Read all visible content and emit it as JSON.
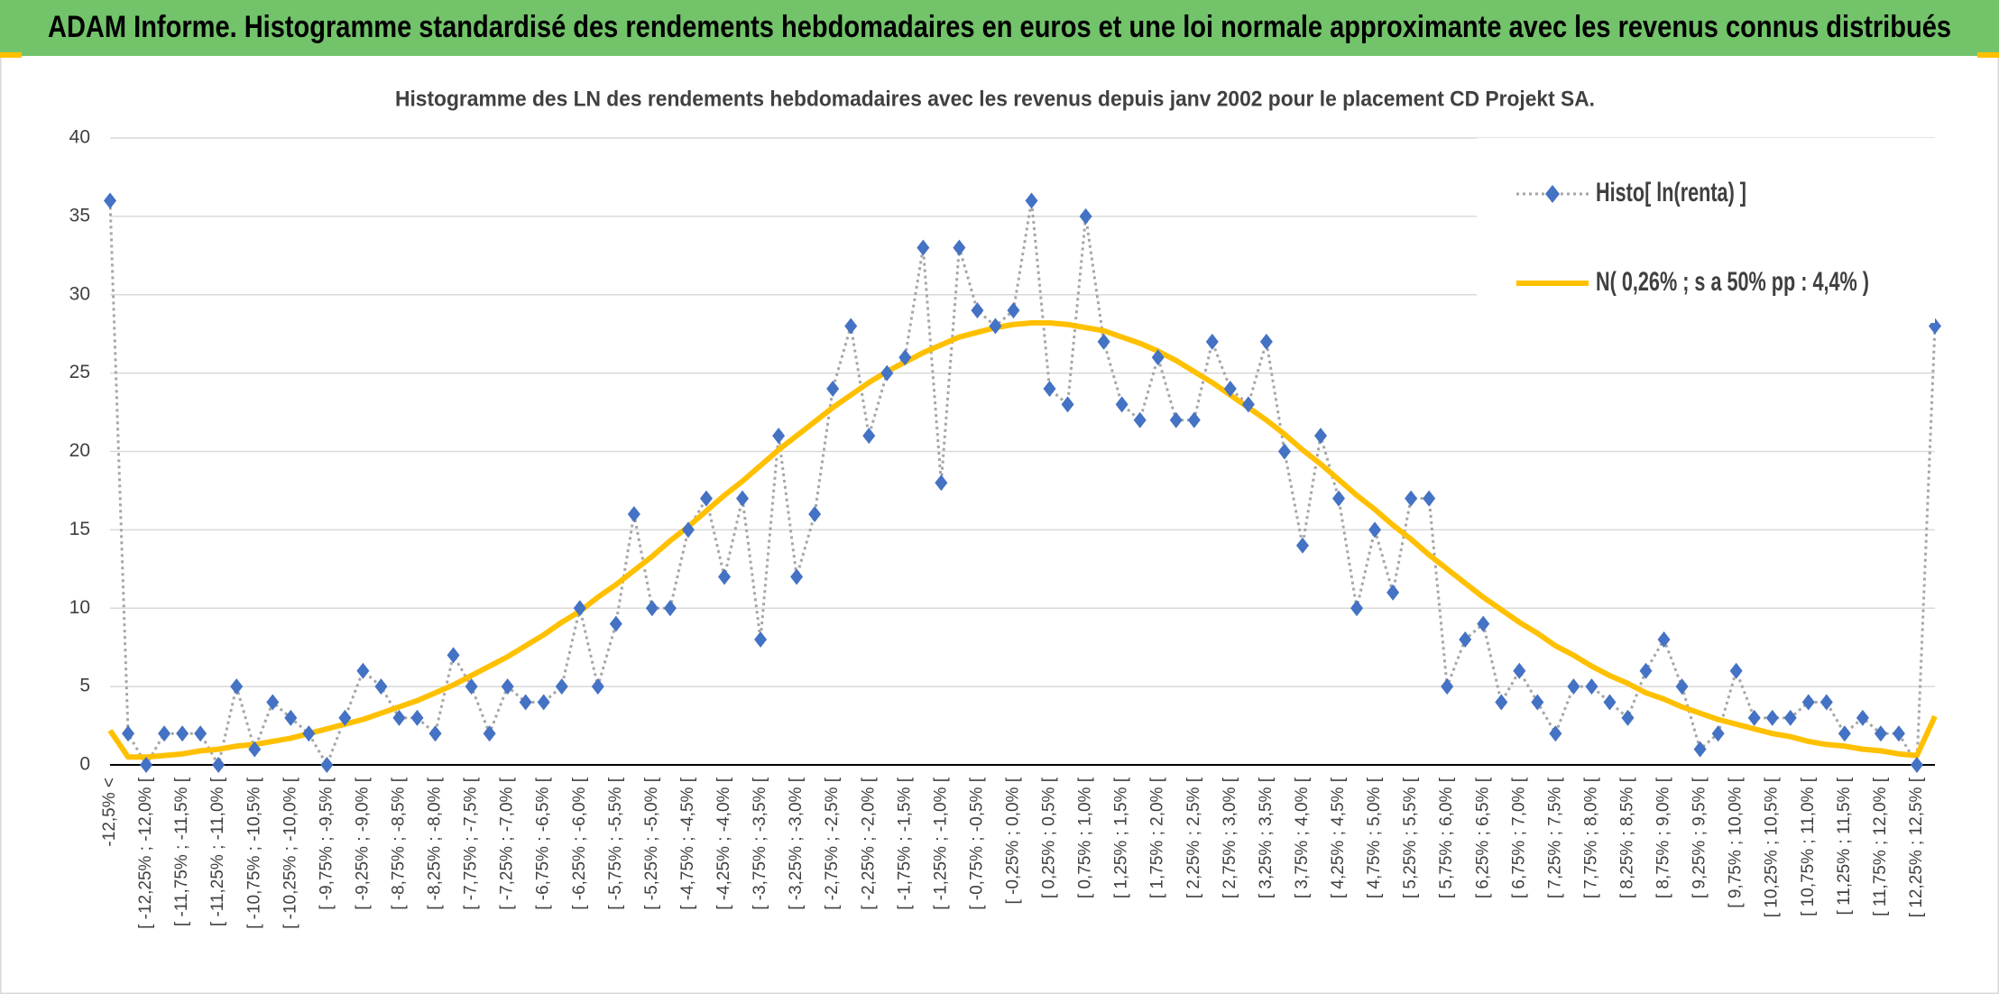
{
  "header": {
    "title": "ADAM Informe. Histogramme standardisé des rendements hebdomadaires en euros et une loi normale approximante avec les revenus connus distribués"
  },
  "chart_data": {
    "type": "line",
    "title": "Histogramme des LN des rendements hebdomadaires avec les revenus depuis janv 2002 pour le placement CD Projekt SA.",
    "categories": [
      "-12,5% <",
      null,
      "[ -12,25% ; -12,0% [",
      null,
      "[ -11,75% ; -11,5% [",
      null,
      "[ -11,25% ; -11,0% [",
      null,
      "[ -10,75% ; -10,5% [",
      null,
      "[ -10,25% ; -10,0% [",
      null,
      "[ -9,75% ; -9,5% [",
      null,
      "[ -9,25% ; -9,0% [",
      null,
      "[ -8,75% ; -8,5% [",
      null,
      "[ -8,25% ; -8,0% [",
      null,
      "[ -7,75% ; -7,5% [",
      null,
      "[ -7,25% ; -7,0% [",
      null,
      "[ -6,75% ; -6,5% [",
      null,
      "[ -6,25% ; -6,0% [",
      null,
      "[ -5,75% ; -5,5% [",
      null,
      "[ -5,25% ; -5,0% [",
      null,
      "[ -4,75% ; -4,5% [",
      null,
      "[ -4,25% ; -4,0% [",
      null,
      "[ -3,75% ; -3,5% [",
      null,
      "[ -3,25% ; -3,0% [",
      null,
      "[ -2,75% ; -2,5% [",
      null,
      "[ -2,25% ; -2,0% [",
      null,
      "[ -1,75% ; -1,5% [",
      null,
      "[ -1,25% ; -1,0% [",
      null,
      "[ -0,75% ; -0,5% [",
      null,
      "[ -0,25% ; 0,0% [",
      null,
      "[ 0,25% ; 0,5% [",
      null,
      "[ 0,75% ; 1,0% [",
      null,
      "[ 1,25% ; 1,5% [",
      null,
      "[ 1,75% ; 2,0% [",
      null,
      "[ 2,25% ; 2,5% [",
      null,
      "[ 2,75% ; 3,0% [",
      null,
      "[ 3,25% ; 3,5% [",
      null,
      "[ 3,75% ; 4,0% [",
      null,
      "[ 4,25% ; 4,5% [",
      null,
      "[ 4,75% ; 5,0% [",
      null,
      "[ 5,25% ; 5,5% [",
      null,
      "[ 5,75% ; 6,0% [",
      null,
      "[ 6,25% ; 6,5% [",
      null,
      "[ 6,75% ; 7,0% [",
      null,
      "[ 7,25% ; 7,5% [",
      null,
      "[ 7,75% ; 8,0% [",
      null,
      "[ 8,25% ; 8,5% [",
      null,
      "[ 8,75% ; 9,0% [",
      null,
      "[ 9,25% ; 9,5% [",
      null,
      "[ 9,75% ; 10,0% [",
      null,
      "[ 10,25% ; 10,5% [",
      null,
      "[ 10,75% ; 11,0% [",
      null,
      "[ 11,25% ; 11,5% [",
      null,
      "[ 11,75% ; 12,0% [",
      null,
      "[ 12,25% ; 12,5% [",
      null
    ],
    "series": [
      {
        "name": "Histo[ ln(renta) ]",
        "color": "#a6a6a6",
        "line_style": "dotted",
        "marker": "diamond",
        "marker_color": "#4472c4",
        "values": [
          36,
          2,
          0,
          2,
          2,
          2,
          0,
          5,
          1,
          4,
          3,
          2,
          0,
          3,
          6,
          5,
          3,
          3,
          2,
          7,
          5,
          2,
          5,
          4,
          4,
          5,
          10,
          5,
          9,
          16,
          10,
          10,
          15,
          17,
          12,
          17,
          8,
          21,
          12,
          16,
          24,
          28,
          21,
          25,
          26,
          33,
          18,
          33,
          29,
          28,
          29,
          36,
          24,
          23,
          35,
          27,
          23,
          22,
          26,
          22,
          22,
          27,
          24,
          23,
          27,
          20,
          14,
          21,
          17,
          10,
          15,
          11,
          17,
          17,
          5,
          8,
          9,
          4,
          6,
          4,
          2,
          5,
          5,
          4,
          3,
          6,
          8,
          5,
          1,
          2,
          6,
          3,
          3,
          3,
          4,
          4,
          2,
          3,
          2,
          2,
          0,
          28
        ]
      },
      {
        "name": "N( 0,26% ; s a 50% pp : 4,4% )",
        "color": "#ffc000",
        "line_style": "solid",
        "marker": "none",
        "values": [
          2.2,
          0.5,
          0.5,
          0.6,
          0.7,
          0.9,
          1.0,
          1.2,
          1.3,
          1.5,
          1.7,
          2.0,
          2.3,
          2.6,
          2.9,
          3.3,
          3.7,
          4.1,
          4.6,
          5.1,
          5.7,
          6.3,
          6.9,
          7.6,
          8.3,
          9.1,
          9.8,
          10.7,
          11.5,
          12.4,
          13.3,
          14.3,
          15.2,
          16.2,
          17.2,
          18.1,
          19.1,
          20.1,
          21.0,
          21.9,
          22.8,
          23.6,
          24.4,
          25.1,
          25.7,
          26.3,
          26.8,
          27.3,
          27.6,
          27.9,
          28.1,
          28.2,
          28.2,
          28.1,
          27.9,
          27.7,
          27.3,
          26.9,
          26.4,
          25.8,
          25.1,
          24.4,
          23.6,
          22.8,
          22.0,
          21.1,
          20.1,
          19.2,
          18.2,
          17.2,
          16.3,
          15.3,
          14.4,
          13.4,
          12.5,
          11.6,
          10.7,
          9.9,
          9.1,
          8.4,
          7.6,
          7.0,
          6.3,
          5.7,
          5.2,
          4.6,
          4.2,
          3.7,
          3.3,
          2.9,
          2.6,
          2.3,
          2.0,
          1.8,
          1.5,
          1.3,
          1.2,
          1.0,
          0.9,
          0.7,
          0.6,
          3.1
        ]
      }
    ],
    "ylim": [
      0,
      40
    ],
    "yticks": [
      0,
      5,
      10,
      15,
      20,
      25,
      30,
      35,
      40
    ],
    "grid": true,
    "legend": "top-right"
  }
}
